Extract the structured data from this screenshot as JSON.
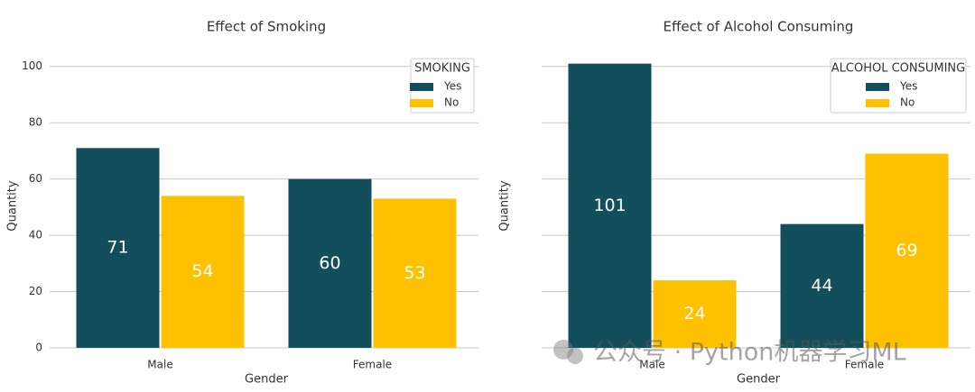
{
  "chart_data": [
    {
      "type": "bar",
      "title": "Effect of Smoking",
      "x_label": "Gender",
      "y_label": "Quantity",
      "categories": [
        "Male",
        "Female"
      ],
      "series": [
        {
          "name": "Yes",
          "color": "#134e5c",
          "values": [
            71,
            60
          ]
        },
        {
          "name": "No",
          "color": "#ffc000",
          "values": [
            54,
            53
          ]
        }
      ],
      "legend_title": "SMOKING",
      "legend": "upper right",
      "ylim": [
        0,
        106
      ],
      "yticks": [
        0,
        20,
        40,
        60,
        80,
        100
      ],
      "show_ytick_labels": true,
      "grid": true
    },
    {
      "type": "bar",
      "title": "Effect of Alcohol Consuming",
      "x_label": "Gender",
      "y_label": "Quantity",
      "categories": [
        "Male",
        "Female"
      ],
      "series": [
        {
          "name": "Yes",
          "color": "#134e5c",
          "values": [
            101,
            44
          ]
        },
        {
          "name": "No",
          "color": "#ffc000",
          "values": [
            24,
            69
          ]
        }
      ],
      "legend_title": "ALCOHOL CONSUMING",
      "legend": "upper right",
      "ylim": [
        0,
        106
      ],
      "yticks": [
        0,
        20,
        40,
        60,
        80,
        100
      ],
      "show_ytick_labels": false,
      "grid": true
    }
  ],
  "watermark": "公众号 · Python机器学习ML"
}
